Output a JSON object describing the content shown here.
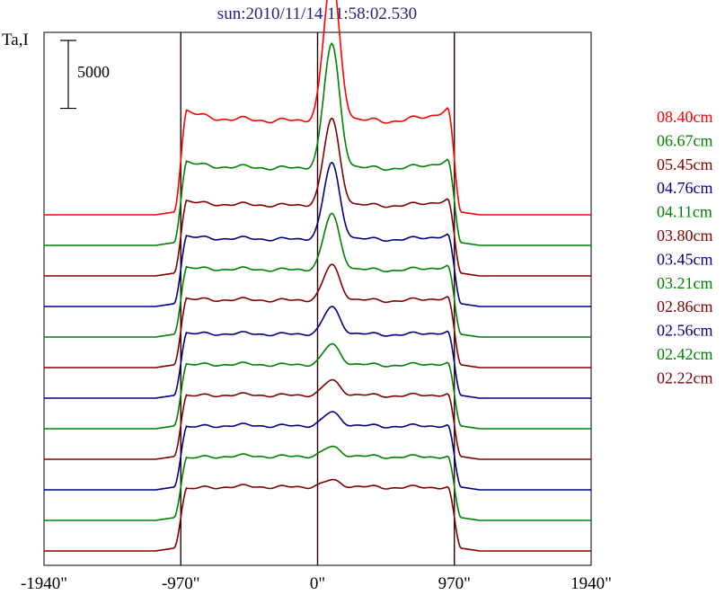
{
  "chart_data": {
    "type": "line",
    "title": "sun:2010/11/14 11:58:02.530",
    "ylabel": "Ta,I",
    "xlabel": "",
    "scale_bar_label": "5000",
    "scale_bar_value": 5000,
    "xlim": [
      -1940,
      1940
    ],
    "x_ticks": [
      {
        "value": -1940,
        "label": "-1940\""
      },
      {
        "value": -970,
        "label": "-970\""
      },
      {
        "value": 0,
        "label": "0\""
      },
      {
        "value": 970,
        "label": "970\""
      },
      {
        "value": 1940,
        "label": "1940\""
      }
    ],
    "vertical_lines": [
      -970,
      0,
      970
    ],
    "series_spacing": 4500,
    "peak": {
      "x": 100,
      "width": 55
    },
    "series": [
      {
        "name": "08.40cm",
        "color": "#ff0000",
        "baseline_index": 11,
        "disk_level": 14000,
        "limb_bump": 1800,
        "peak_height": 21000
      },
      {
        "name": "06.67cm",
        "color": "#008000",
        "baseline_index": 10,
        "disk_level": 11500,
        "limb_bump": 1200,
        "peak_height": 18000
      },
      {
        "name": "05.45cm",
        "color": "#800000",
        "baseline_index": 9,
        "disk_level": 10500,
        "limb_bump": 900,
        "peak_height": 12500
      },
      {
        "name": "04.76cm",
        "color": "#000080",
        "baseline_index": 8,
        "disk_level": 10000,
        "limb_bump": 700,
        "peak_height": 11000
      },
      {
        "name": "04.11cm",
        "color": "#008000",
        "baseline_index": 7,
        "disk_level": 10000,
        "limb_bump": 600,
        "peak_height": 8000
      },
      {
        "name": "03.80cm",
        "color": "#800000",
        "baseline_index": 6,
        "disk_level": 10000,
        "limb_bump": 500,
        "peak_height": 5000
      },
      {
        "name": "03.45cm",
        "color": "#000080",
        "baseline_index": 5,
        "disk_level": 9500,
        "limb_bump": 400,
        "peak_height": 3800
      },
      {
        "name": "03.21cm",
        "color": "#008000",
        "baseline_index": 4,
        "disk_level": 9500,
        "limb_bump": 300,
        "peak_height": 2800
      },
      {
        "name": "02.86cm",
        "color": "#800000",
        "baseline_index": 3,
        "disk_level": 9500,
        "limb_bump": 200,
        "peak_height": 2000
      },
      {
        "name": "02.56cm",
        "color": "#000080",
        "baseline_index": 2,
        "disk_level": 9500,
        "limb_bump": 100,
        "peak_height": 1800
      },
      {
        "name": "02.42cm",
        "color": "#008000",
        "baseline_index": 1,
        "disk_level": 9500,
        "limb_bump": 0,
        "peak_height": 1200
      },
      {
        "name": "02.22cm",
        "color": "#800000",
        "baseline_index": 0,
        "disk_level": 9500,
        "limb_bump": 0,
        "peak_height": 800
      }
    ]
  }
}
